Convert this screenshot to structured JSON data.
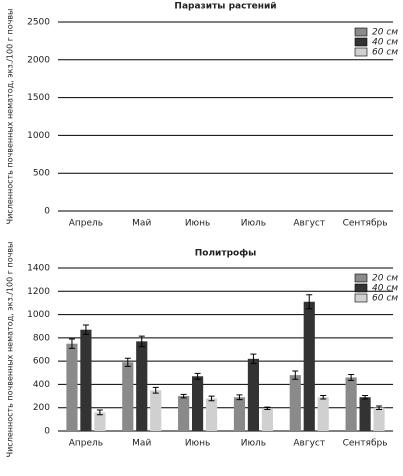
{
  "chart_data": [
    {
      "type": "bar",
      "title": "Паразиты растений",
      "y_label": "Численность почвенных нематод, экз./100 г почвы",
      "categories": [
        "Апрель",
        "Май",
        "Июнь",
        "Июль",
        "Август",
        "Сентябрь"
      ],
      "series": [
        {
          "name": "20 см",
          "color": "#8a8a8a",
          "values": [
            0,
            0,
            0,
            0,
            0,
            0
          ]
        },
        {
          "name": "40 см",
          "color": "#333333",
          "values": [
            0,
            0,
            0,
            0,
            0,
            0
          ]
        },
        {
          "name": "60 см",
          "color": "#d0d0d0",
          "values": [
            0,
            0,
            0,
            0,
            0,
            0
          ]
        }
      ],
      "ylim": [
        0,
        2500
      ],
      "yticks": [
        0,
        500,
        1000,
        1500,
        2000,
        2500
      ],
      "grid": true
    },
    {
      "type": "bar",
      "title": "Политрофы",
      "y_label": "Численность почвенных нематод, экз./100 г почвы",
      "categories": [
        "Апрель",
        "Май",
        "Июнь",
        "Июль",
        "Август",
        "Сентябрь"
      ],
      "series": [
        {
          "name": "20 см",
          "color": "#8a8a8a",
          "values": [
            750,
            590,
            300,
            290,
            480,
            460
          ],
          "errors": [
            40,
            35,
            15,
            20,
            35,
            25
          ]
        },
        {
          "name": "40 см",
          "color": "#333333",
          "values": [
            870,
            770,
            470,
            620,
            1110,
            290
          ],
          "errors": [
            40,
            45,
            25,
            40,
            60,
            15
          ]
        },
        {
          "name": "60 см",
          "color": "#d0d0d0",
          "values": [
            160,
            350,
            280,
            195,
            290,
            200
          ],
          "errors": [
            20,
            25,
            20,
            10,
            15,
            15
          ]
        }
      ],
      "ylim": [
        0,
        1400
      ],
      "yticks": [
        0,
        200,
        400,
        600,
        800,
        1000,
        1200,
        1400
      ],
      "grid": true
    }
  ]
}
